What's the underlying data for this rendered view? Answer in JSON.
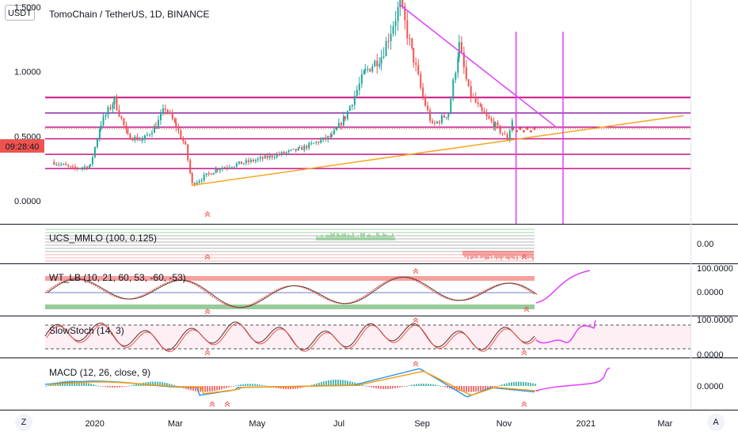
{
  "header": {
    "currency_button": "USDT",
    "title": "TomoChain / TetherUS, 1D, BINANCE",
    "clock": "09:28:40"
  },
  "footer": {
    "left_button": "Z",
    "right_button": "A"
  },
  "colors": {
    "up": "#26a69a",
    "down": "#ef5350",
    "magenta": "#c71585",
    "pink": "#e040fb",
    "orange": "#f5a623",
    "clock_bg": "#ef5350"
  },
  "chart_data": [
    {
      "type": "candlestick",
      "title": "TomoChain / TetherUS, 1D, BINANCE",
      "y_ticks": [
        "1.5000",
        "1.0000",
        "0.5000",
        "0.0000"
      ],
      "x_ticks": [
        "2020",
        "Mar",
        "May",
        "Jul",
        "Sep",
        "Nov",
        "2021",
        "Mar"
      ],
      "price_path": [
        {
          "t": "2019-12-01",
          "close": 0.3
        },
        {
          "t": "2019-12-15",
          "close": 0.25
        },
        {
          "t": "2019-12-28",
          "close": 0.27
        },
        {
          "t": "2020-01-05",
          "close": 0.6
        },
        {
          "t": "2020-01-15",
          "close": 0.78
        },
        {
          "t": "2020-01-25",
          "close": 0.5
        },
        {
          "t": "2020-02-05",
          "close": 0.47
        },
        {
          "t": "2020-02-15",
          "close": 0.58
        },
        {
          "t": "2020-02-22",
          "close": 0.72
        },
        {
          "t": "2020-03-01",
          "close": 0.58
        },
        {
          "t": "2020-03-08",
          "close": 0.42
        },
        {
          "t": "2020-03-13",
          "close": 0.13
        },
        {
          "t": "2020-04-01",
          "close": 0.25
        },
        {
          "t": "2020-05-01",
          "close": 0.32
        },
        {
          "t": "2020-06-01",
          "close": 0.4
        },
        {
          "t": "2020-06-25",
          "close": 0.5
        },
        {
          "t": "2020-07-05",
          "close": 0.65
        },
        {
          "t": "2020-07-20",
          "close": 1.0
        },
        {
          "t": "2020-08-01",
          "close": 1.12
        },
        {
          "t": "2020-08-15",
          "close": 1.52
        },
        {
          "t": "2020-08-25",
          "close": 1.1
        },
        {
          "t": "2020-09-01",
          "close": 0.8
        },
        {
          "t": "2020-09-08",
          "close": 0.58
        },
        {
          "t": "2020-09-20",
          "close": 0.68
        },
        {
          "t": "2020-09-28",
          "close": 1.2
        },
        {
          "t": "2020-10-05",
          "close": 0.85
        },
        {
          "t": "2020-10-15",
          "close": 0.68
        },
        {
          "t": "2020-10-25",
          "close": 0.58
        },
        {
          "t": "2020-11-03",
          "close": 0.48
        },
        {
          "t": "2020-11-08",
          "close": 0.68
        }
      ],
      "horizontal_levels": [
        0.8,
        0.68,
        0.57,
        0.48,
        0.36,
        0.25
      ],
      "dotted_level": 0.57,
      "trendlines": [
        {
          "color": "magenta",
          "from": {
            "t": "2020-08-15",
            "v": 1.52
          },
          "to": {
            "t": "2020-12-10",
            "v": 0.57
          }
        },
        {
          "color": "orange",
          "from": {
            "t": "2020-03-13",
            "v": 0.12
          },
          "to": {
            "t": "2021-03-15",
            "v": 0.66
          }
        }
      ],
      "vertical_markers": [
        "2020-11-10",
        "2020-12-15"
      ]
    },
    {
      "type": "indicator",
      "name": "UCS_MMLO (100, 0.125)",
      "y_ticks": [
        "0.00"
      ]
    },
    {
      "type": "indicator",
      "name": "WT_LB (10, 21, 60, 53, -60, -53)",
      "y_ticks": [
        "100.0000",
        "0.0000"
      ]
    },
    {
      "type": "indicator",
      "name": "SlowStoch (14, 3)",
      "y_ticks": [
        "100.0000",
        "0.0000"
      ]
    },
    {
      "type": "indicator",
      "name": "MACD (12, 26, close, 9)",
      "y_ticks": [
        "0.0000"
      ]
    }
  ]
}
